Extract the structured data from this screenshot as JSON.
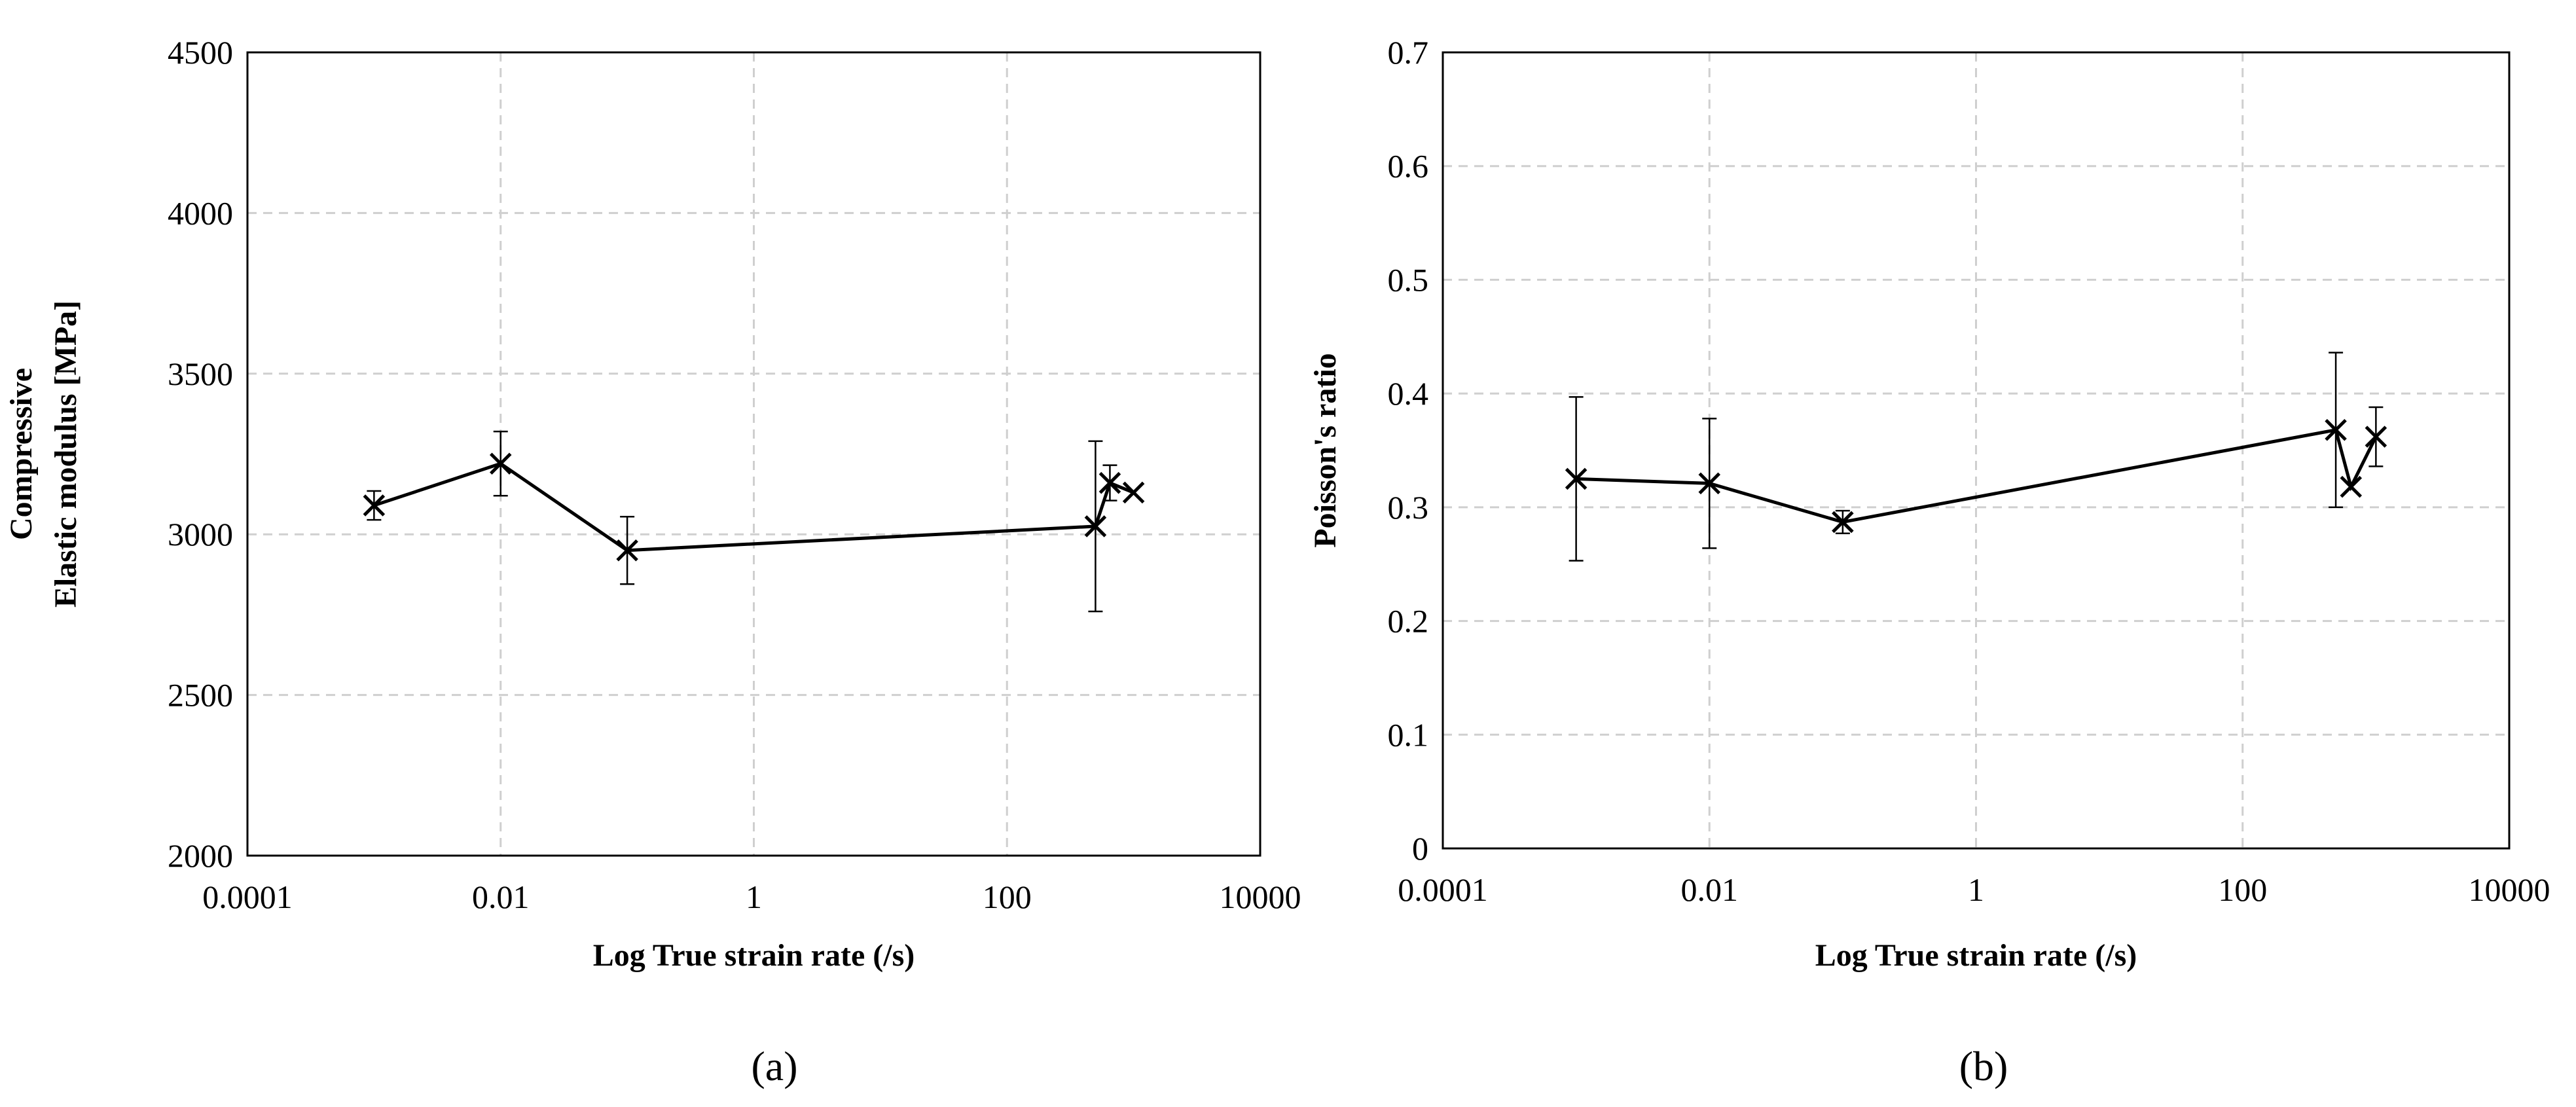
{
  "chart_data": [
    {
      "type": "line",
      "panel": "a",
      "panel_label": "(a)",
      "title": "",
      "xlabel": "Log True strain rate (/s)",
      "ylabel_lines": [
        "Compressive",
        "Elastic modulus [MPa]"
      ],
      "xscale": "log",
      "xlim": [
        0.0001,
        10000
      ],
      "ylim": [
        2000,
        4500
      ],
      "x_ticks": [
        0.0001,
        0.01,
        1,
        100,
        10000
      ],
      "x_tick_labels": [
        "0.0001",
        "0.01",
        "1",
        "100",
        "10000"
      ],
      "y_ticks": [
        2000,
        2500,
        3000,
        3500,
        4000,
        4500
      ],
      "y_tick_labels": [
        "2000",
        "2500",
        "3000",
        "3500",
        "4000",
        "4500"
      ],
      "grid": true,
      "series": [
        {
          "name": "Compressive elastic modulus",
          "marker": "x",
          "points": [
            {
              "x": 0.001,
              "y": 3090,
              "err": 45
            },
            {
              "x": 0.01,
              "y": 3220,
              "err": 100
            },
            {
              "x": 0.1,
              "y": 2950,
              "err": 105
            },
            {
              "x": 500,
              "y": 3025,
              "err": 265
            },
            {
              "x": 650,
              "y": 3160,
              "err": 55
            },
            {
              "x": 1000,
              "y": 3130,
              "err": 0
            }
          ]
        }
      ]
    },
    {
      "type": "line",
      "panel": "b",
      "panel_label": "(b)",
      "title": "",
      "xlabel": "Log True strain rate (/s)",
      "ylabel_lines": [
        "Poisson's ratio"
      ],
      "xscale": "log",
      "xlim": [
        0.0001,
        10000
      ],
      "ylim": [
        0,
        0.7
      ],
      "x_ticks": [
        0.0001,
        0.01,
        1,
        100,
        10000
      ],
      "x_tick_labels": [
        "0.0001",
        "0.01",
        "1",
        "100",
        "10000"
      ],
      "y_ticks": [
        0,
        0.1,
        0.2,
        0.3,
        0.4,
        0.5,
        0.6,
        0.7
      ],
      "y_tick_labels": [
        "0",
        "0.1",
        "0.2",
        "0.3",
        "0.4",
        "0.5",
        "0.6",
        "0.7"
      ],
      "grid": true,
      "series": [
        {
          "name": "Poisson's ratio",
          "marker": "x",
          "points": [
            {
              "x": 0.001,
              "y": 0.325,
              "err": 0.072
            },
            {
              "x": 0.01,
              "y": 0.321,
              "err": 0.057
            },
            {
              "x": 0.1,
              "y": 0.287,
              "err": 0.01
            },
            {
              "x": 500,
              "y": 0.368,
              "err": 0.068
            },
            {
              "x": 650,
              "y": 0.318,
              "err": 0
            },
            {
              "x": 1000,
              "y": 0.362,
              "err": 0.026
            }
          ]
        }
      ]
    }
  ]
}
